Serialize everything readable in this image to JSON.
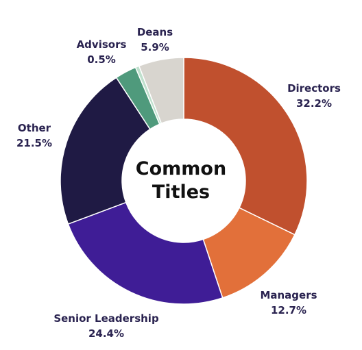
{
  "chart_data": {
    "type": "pie",
    "donut": true,
    "center_text": [
      "Common",
      "Titles"
    ],
    "slices": [
      {
        "label": "Directors",
        "value": 32.2,
        "display": "32.2%",
        "color": "#c0502e"
      },
      {
        "label": "Managers",
        "value": 12.7,
        "display": "12.7%",
        "color": "#e2703a"
      },
      {
        "label": "Senior Leadership",
        "value": 24.4,
        "display": "24.4%",
        "color": "#3f1d96"
      },
      {
        "label": "Other",
        "value": 21.5,
        "display": "21.5%",
        "color": "#1f1a44"
      },
      {
        "label": "",
        "value": 2.8,
        "display": "",
        "color": "#4f9a7c"
      },
      {
        "label": "Advisors",
        "value": 0.5,
        "display": "0.5%",
        "color": "#bfe0cd"
      },
      {
        "label": "Deans",
        "value": 5.9,
        "display": "5.9%",
        "color": "#d8d5cf"
      }
    ]
  }
}
